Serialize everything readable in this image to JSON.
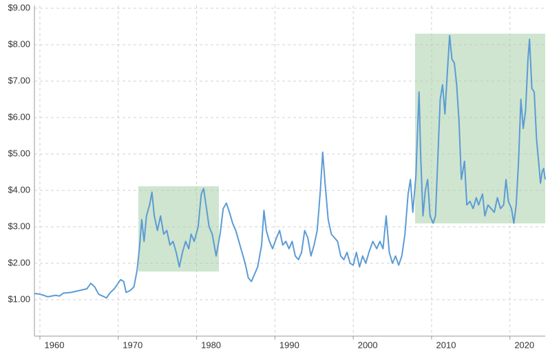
{
  "chart_data": {
    "type": "line",
    "x": [
      1959.3,
      1960,
      1960.5,
      1961,
      1962,
      1962.5,
      1963,
      1964,
      1965,
      1966,
      1966.5,
      1967,
      1967.5,
      1968,
      1968.5,
      1969,
      1969.5,
      1970.3,
      1970.7,
      1971,
      1971.5,
      1972,
      1972.4,
      1972.7,
      1973,
      1973.3,
      1973.6,
      1974,
      1974.3,
      1974.6,
      1975,
      1975.4,
      1975.8,
      1976.2,
      1976.6,
      1977,
      1977.4,
      1977.8,
      1978.2,
      1978.6,
      1979,
      1979.3,
      1979.7,
      1980.2,
      1980.6,
      1980.9,
      1981.2,
      1981.6,
      1982,
      1982.5,
      1983,
      1983.4,
      1983.8,
      1984.2,
      1984.6,
      1985,
      1985.4,
      1985.8,
      1986.2,
      1986.6,
      1987,
      1987.4,
      1987.8,
      1988.3,
      1988.6,
      1988.9,
      1989.3,
      1989.7,
      1990.2,
      1990.6,
      1991,
      1991.4,
      1991.8,
      1992.2,
      1992.6,
      1993,
      1993.4,
      1993.8,
      1994.2,
      1994.6,
      1995,
      1995.4,
      1995.8,
      1996.1,
      1996.4,
      1996.8,
      1997.2,
      1997.6,
      1998,
      1998.4,
      1998.8,
      1999.2,
      1999.6,
      2000,
      2000.4,
      2000.8,
      2001.2,
      2001.6,
      2002,
      2002.5,
      2003,
      2003.4,
      2003.8,
      2004.2,
      2004.6,
      2005,
      2005.4,
      2005.8,
      2006.2,
      2006.6,
      2007,
      2007.3,
      2007.6,
      2008,
      2008.2,
      2008.4,
      2008.6,
      2008.9,
      2009.2,
      2009.5,
      2009.8,
      2010.2,
      2010.5,
      2010.8,
      2011.1,
      2011.4,
      2011.7,
      2012,
      2012.3,
      2012.6,
      2012.9,
      2013.2,
      2013.5,
      2013.8,
      2014.2,
      2014.5,
      2014.9,
      2015.3,
      2015.7,
      2016,
      2016.5,
      2016.8,
      2017.2,
      2017.6,
      2018,
      2018.4,
      2018.8,
      2019.2,
      2019.5,
      2019.8,
      2020.2,
      2020.5,
      2020.8,
      2021.1,
      2021.4,
      2021.7,
      2022,
      2022.3,
      2022.5,
      2022.8,
      2023.1,
      2023.4,
      2023.7,
      2023.9,
      2024.1,
      2024.3,
      2024.5
    ],
    "values": [
      1.17,
      1.15,
      1.12,
      1.08,
      1.12,
      1.1,
      1.18,
      1.2,
      1.25,
      1.3,
      1.45,
      1.35,
      1.15,
      1.1,
      1.05,
      1.2,
      1.3,
      1.55,
      1.5,
      1.2,
      1.25,
      1.35,
      1.8,
      2.4,
      3.2,
      2.6,
      3.3,
      3.6,
      3.95,
      3.3,
      2.9,
      3.3,
      2.8,
      2.9,
      2.5,
      2.6,
      2.3,
      1.9,
      2.3,
      2.6,
      2.4,
      2.8,
      2.6,
      3.0,
      3.9,
      4.05,
      3.6,
      3.0,
      2.8,
      2.2,
      2.8,
      3.5,
      3.65,
      3.4,
      3.1,
      2.9,
      2.6,
      2.3,
      2.0,
      1.6,
      1.5,
      1.7,
      1.9,
      2.5,
      3.45,
      2.9,
      2.6,
      2.4,
      2.7,
      2.9,
      2.5,
      2.6,
      2.4,
      2.6,
      2.2,
      2.1,
      2.3,
      2.9,
      2.7,
      2.2,
      2.5,
      2.9,
      4.0,
      5.05,
      4.2,
      3.2,
      2.8,
      2.7,
      2.6,
      2.2,
      2.1,
      2.3,
      2.0,
      1.95,
      2.3,
      1.9,
      2.2,
      2.0,
      2.3,
      2.6,
      2.4,
      2.6,
      2.4,
      3.3,
      2.3,
      2.0,
      2.2,
      1.95,
      2.2,
      2.8,
      3.9,
      4.3,
      3.4,
      4.4,
      5.6,
      6.7,
      5.0,
      3.3,
      4.0,
      4.3,
      3.3,
      3.1,
      3.3,
      4.9,
      6.5,
      6.9,
      6.1,
      7.2,
      8.25,
      7.6,
      7.5,
      6.9,
      5.9,
      4.3,
      4.8,
      3.6,
      3.7,
      3.5,
      3.8,
      3.6,
      3.9,
      3.3,
      3.6,
      3.5,
      3.4,
      3.8,
      3.5,
      3.6,
      4.3,
      3.7,
      3.5,
      3.1,
      3.6,
      4.8,
      6.5,
      5.7,
      6.2,
      7.6,
      8.15,
      6.8,
      6.7,
      5.4,
      4.7,
      4.2,
      4.5,
      4.6,
      4.3
    ],
    "color": "#5b9bd5",
    "xlim": [
      1959.3,
      2024.5
    ],
    "xticks": [
      1960,
      1970,
      1980,
      1990,
      2000,
      2010,
      2020
    ],
    "ylim": [
      0,
      9
    ],
    "yticks": [
      {
        "value": 1,
        "label": "$1.00"
      },
      {
        "value": 2,
        "label": "$2.00"
      },
      {
        "value": 3,
        "label": "$3.00"
      },
      {
        "value": 4,
        "label": "$4.00"
      },
      {
        "value": 5,
        "label": "$5.00"
      },
      {
        "value": 6,
        "label": "$6.00"
      },
      {
        "value": 7,
        "label": "$7.00"
      },
      {
        "value": 8,
        "label": "$8.00"
      },
      {
        "value": 9,
        "label": "$9.00"
      }
    ],
    "grid": true
  }
}
